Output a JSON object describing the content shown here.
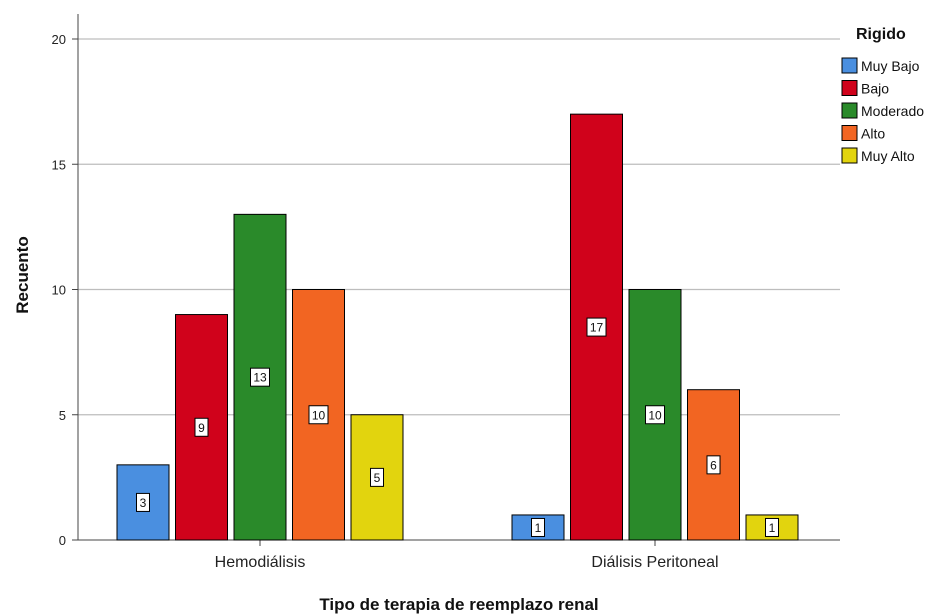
{
  "chart_data": {
    "type": "bar",
    "xlabel": "Tipo de terapia de reemplazo renal",
    "ylabel": "Recuento",
    "ylim": [
      0,
      20
    ],
    "yticks": [
      0,
      5,
      10,
      15,
      20
    ],
    "grid": true,
    "categories": [
      "Hemodiálisis",
      "Diálisis Peritoneal"
    ],
    "legend": {
      "title": "Rigido",
      "placement": "top-right"
    },
    "series": [
      {
        "name": "Muy Bajo",
        "color": "#4a8fe0",
        "values": [
          3,
          1
        ]
      },
      {
        "name": "Bajo",
        "color": "#d0021b",
        "values": [
          9,
          17
        ]
      },
      {
        "name": "Moderado",
        "color": "#2a8a2a",
        "values": [
          13,
          10
        ]
      },
      {
        "name": "Alto",
        "color": "#f26522",
        "values": [
          10,
          6
        ]
      },
      {
        "name": "Muy Alto",
        "color": "#e2d40e",
        "values": [
          5,
          1
        ]
      }
    ]
  }
}
